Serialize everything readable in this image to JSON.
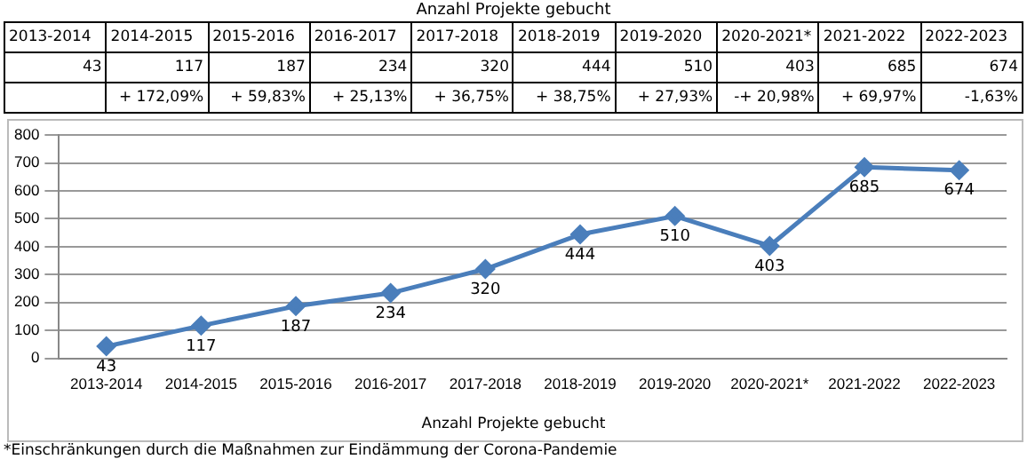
{
  "chart_data": {
    "type": "line",
    "title": "Anzahl Projekte gebucht",
    "xlabel": "Anzahl Projekte gebucht",
    "categories": [
      "2013-2014",
      "2014-2015",
      "2015-2016",
      "2016-2017",
      "2017-2018",
      "2018-2019",
      "2019-2020",
      "2020-2021*",
      "2021-2022",
      "2022-2023"
    ],
    "values": [
      43,
      117,
      187,
      234,
      320,
      444,
      510,
      403,
      685,
      674
    ],
    "value_labels": [
      "43",
      "117",
      "187",
      "234",
      "320",
      "444",
      "510",
      "403",
      "685",
      "674"
    ],
    "color": "#4a7ebb",
    "marker": "diamond",
    "grid": "y",
    "legend": false,
    "ylim": [
      0,
      800
    ],
    "yticks": [
      0,
      100,
      200,
      300,
      400,
      500,
      600,
      700,
      800
    ],
    "annotations": [
      "43",
      "117",
      "187",
      "234",
      "320",
      "444",
      "510",
      "403",
      "685",
      "674",
      "+ 172,09%",
      "+ 59,83%",
      "+ 25,13%",
      "+ 36,75%",
      "+ 38,75%",
      "+ 27,93%",
      "-+ 20,98%",
      "+ 69,97%",
      "-1,63%",
      "*Einschränkungen durch die Maßnahmen zur Eindämmung der Corona-Pandemie"
    ]
  }
}
